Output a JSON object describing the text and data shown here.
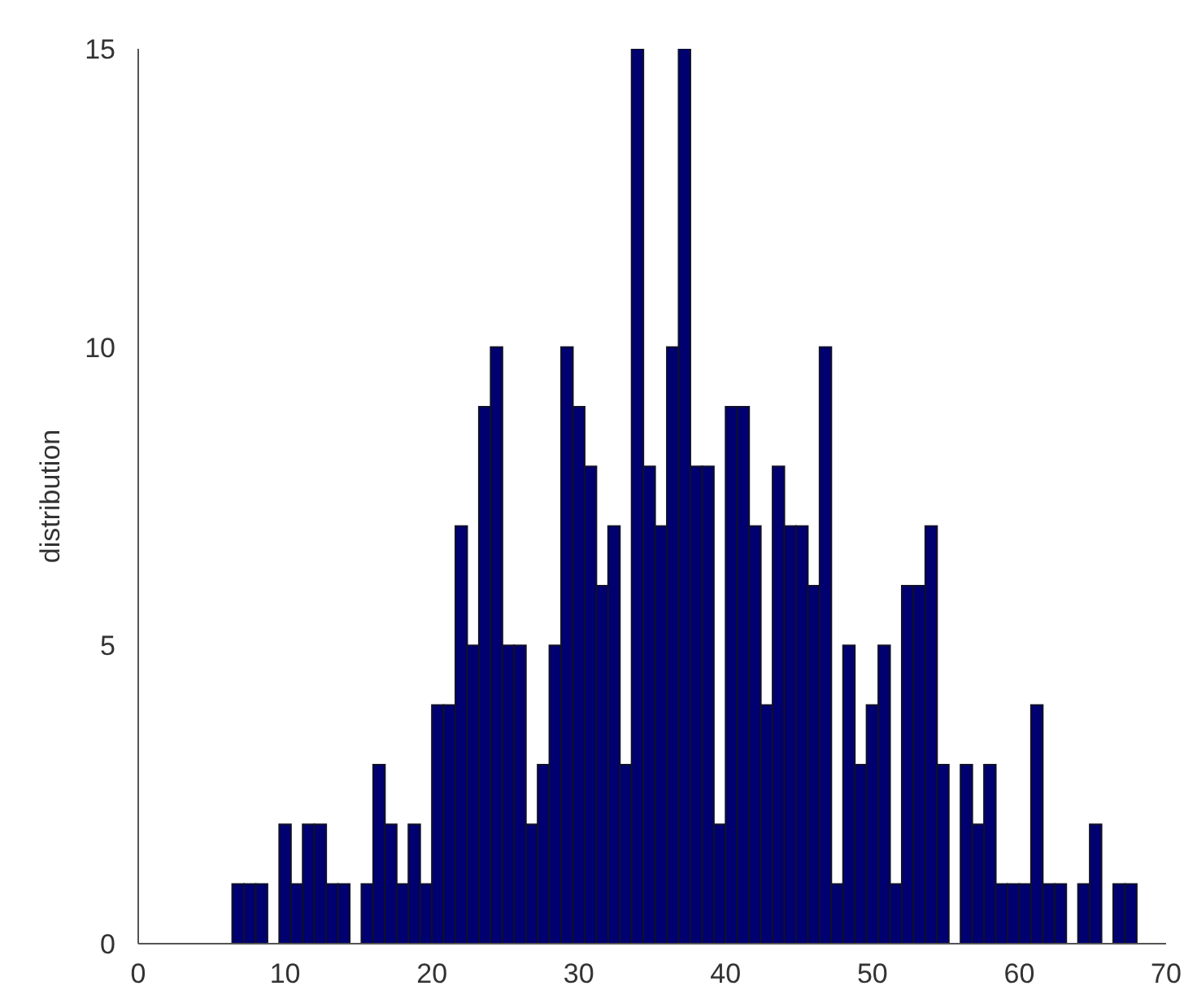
{
  "chart_data": {
    "type": "histogram",
    "ylabel": "distribution",
    "color": "#000070",
    "bins": [
      6.4,
      7.2,
      8.0,
      8.8,
      9.6,
      10.4,
      11.2,
      12.0,
      12.8,
      13.6,
      14.4,
      15.2,
      16.0,
      16.8,
      17.6,
      18.4,
      19.2,
      20.0,
      20.8,
      21.6,
      22.4,
      23.2,
      24.0,
      24.8,
      25.6,
      26.4,
      27.2,
      28.0,
      28.8,
      29.6,
      30.4,
      31.2,
      32.0,
      32.8,
      33.6,
      34.4,
      35.2,
      36.0,
      36.8,
      37.6,
      38.4,
      39.2,
      40.0,
      40.8,
      41.6,
      42.4,
      43.2,
      44.0,
      44.8,
      45.6,
      46.4,
      47.2,
      48.0,
      48.8,
      49.6,
      50.4,
      51.2,
      52.0,
      52.8,
      53.6,
      54.4,
      55.2,
      56.0,
      56.8,
      57.6,
      58.4,
      59.2,
      60.0,
      60.8,
      61.6,
      62.4,
      63.2,
      64.0,
      64.8,
      65.6,
      66.4,
      67.2,
      68.0
    ],
    "values": [
      1,
      1,
      1,
      0,
      2,
      1,
      2,
      2,
      1,
      1,
      0,
      1,
      3,
      2,
      1,
      2,
      1,
      4,
      4,
      7,
      5,
      9,
      10,
      5,
      5,
      2,
      3,
      5,
      10,
      9,
      8,
      6,
      7,
      3,
      15,
      8,
      7,
      10,
      15,
      8,
      8,
      2,
      9,
      9,
      7,
      4,
      8,
      7,
      7,
      6,
      10,
      1,
      5,
      3,
      4,
      5,
      1,
      6,
      6,
      7,
      3,
      0,
      3,
      2,
      3,
      1,
      1,
      1,
      4,
      1,
      1,
      0,
      1,
      2,
      0,
      1,
      1
    ],
    "xlim": [
      0,
      70
    ],
    "xticks": [
      0,
      10,
      20,
      30,
      40,
      50,
      60,
      70
    ],
    "ylim": [
      0,
      15
    ],
    "yticks": [
      0,
      5,
      10,
      15
    ],
    "grid": false
  }
}
